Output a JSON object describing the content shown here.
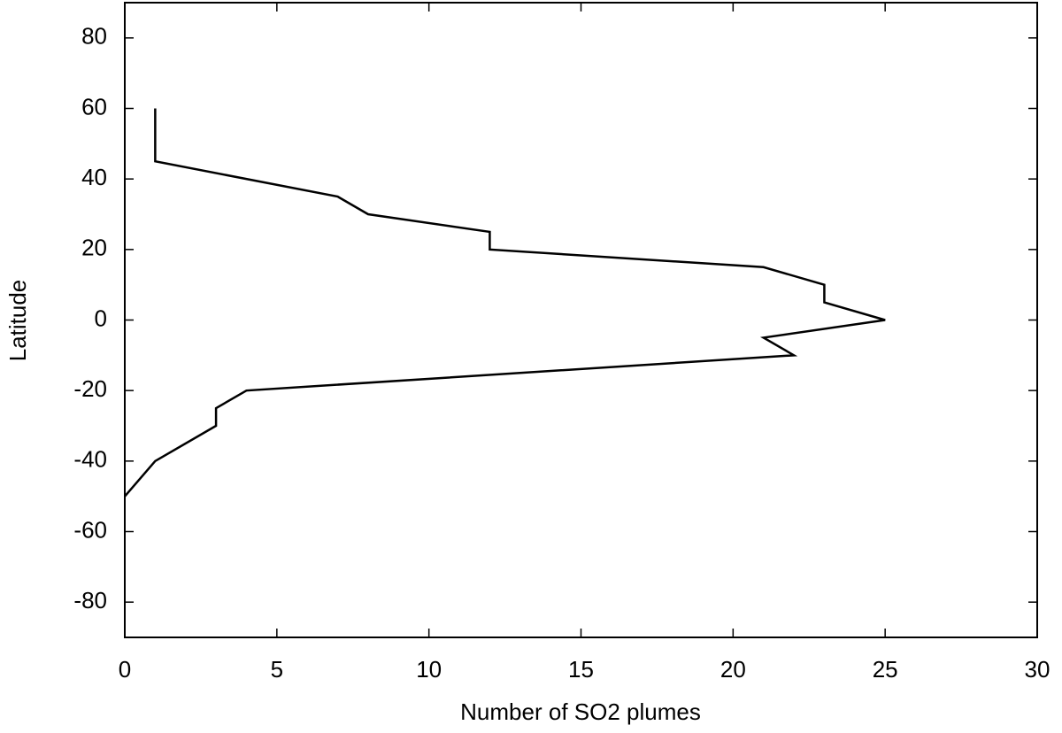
{
  "chart_data": {
    "type": "line",
    "x_label": "Number of SO2 plumes",
    "y_label": "Latitude",
    "x": [
      1,
      1,
      7,
      8,
      12,
      12,
      21,
      23,
      23,
      25,
      21,
      22,
      4,
      3,
      3,
      1,
      0
    ],
    "y": [
      60,
      45,
      35,
      30,
      25,
      20,
      15,
      10,
      5,
      0,
      -5,
      -10,
      -20,
      -25,
      -30,
      -40,
      -50
    ],
    "color": "#000000",
    "xlim": [
      0,
      30
    ],
    "xticks": [
      0,
      5,
      10,
      15,
      20,
      25,
      30
    ],
    "ylim": [
      -90,
      90
    ],
    "yticks": [
      -80,
      -60,
      -40,
      -20,
      0,
      20,
      40,
      60,
      80
    ],
    "grid": false
  }
}
